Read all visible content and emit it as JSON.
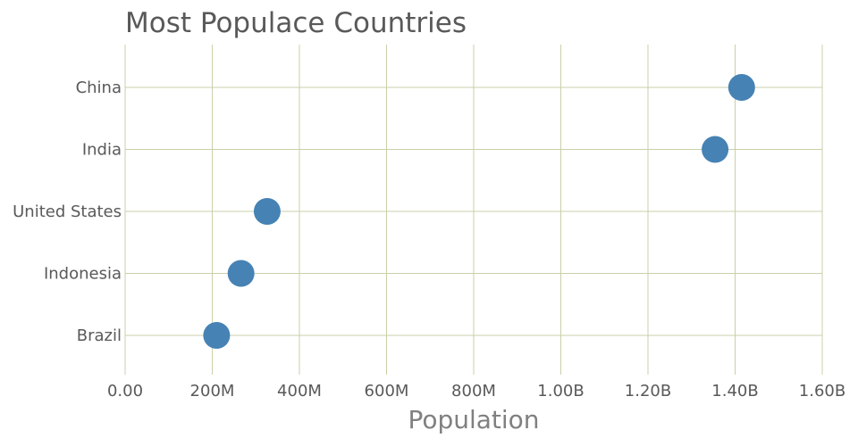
{
  "chart_data": {
    "type": "scatter",
    "title": "Most Populace Countries",
    "xlabel": "Population",
    "ylabel": "",
    "categories": [
      "China",
      "India",
      "United States",
      "Indonesia",
      "Brazil"
    ],
    "values": [
      1415000000,
      1354000000,
      326000000,
      266000000,
      210000000
    ],
    "xlim": [
      0,
      1600000000
    ],
    "xticks": [
      0,
      200000000,
      400000000,
      600000000,
      800000000,
      1000000000,
      1200000000,
      1400000000,
      1600000000
    ],
    "xtick_labels": [
      "0.00",
      "200M",
      "400M",
      "600M",
      "800M",
      "1.00B",
      "1.20B",
      "1.40B",
      "1.60B"
    ],
    "grid": true,
    "legend": "none",
    "marker_color": "#4682b4",
    "grid_color": "#c8d0a8"
  }
}
